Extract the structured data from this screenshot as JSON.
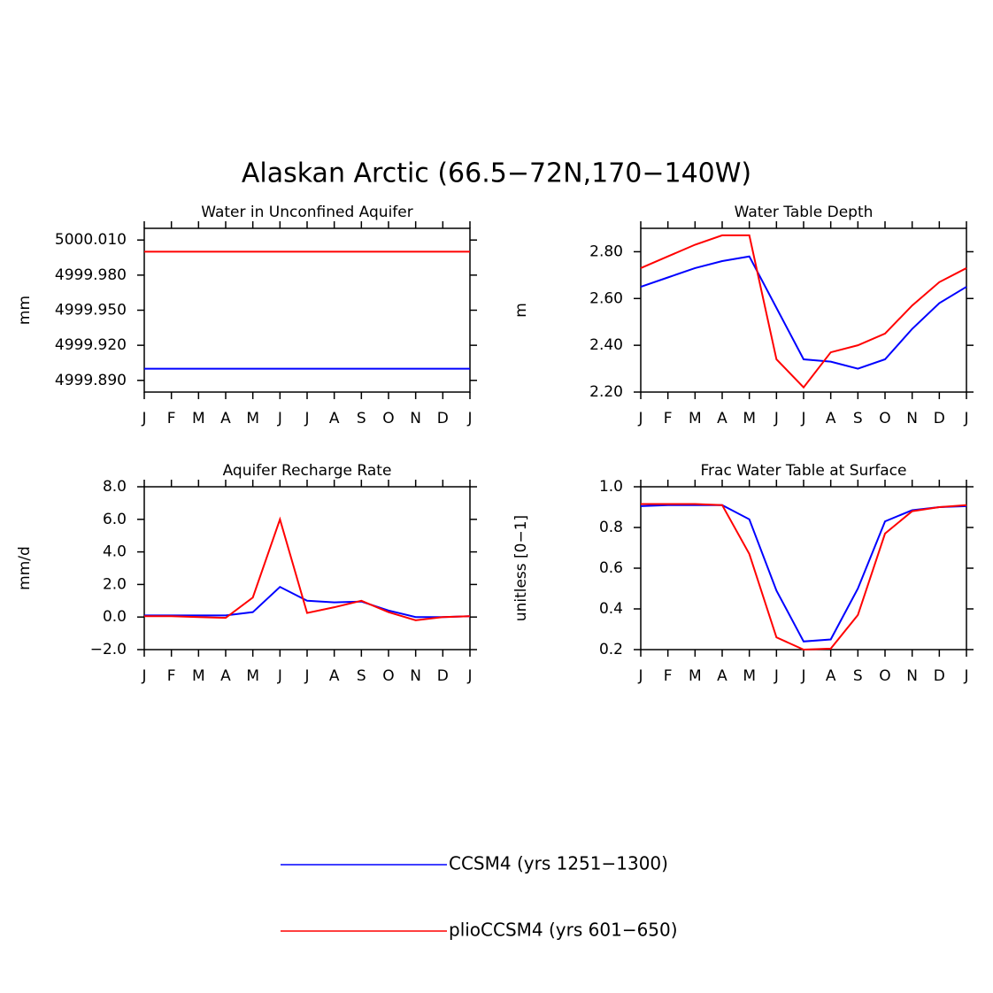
{
  "title": "Alaskan Arctic (66.5−72N,170−140W)",
  "legend": [
    {
      "name": "CCSM4 (yrs 1251−1300)",
      "color": "#0000ff"
    },
    {
      "name": "plioCCSM4 (yrs 601−650)",
      "color": "#ff0000"
    }
  ],
  "chart_data": [
    {
      "type": "line",
      "title": "Water in Unconfined Aquifer",
      "y_label": "mm",
      "categories": [
        "J",
        "F",
        "M",
        "A",
        "M",
        "J",
        "J",
        "A",
        "S",
        "O",
        "N",
        "D",
        "J"
      ],
      "ylim": [
        4999.88,
        5000.02
      ],
      "yticks": [
        {
          "value": 5000.01,
          "label": "5000.010"
        },
        {
          "value": 4999.98,
          "label": "4999.980"
        },
        {
          "value": 4999.95,
          "label": "4999.950"
        },
        {
          "value": 4999.92,
          "label": "4999.920"
        },
        {
          "value": 4999.89,
          "label": "4999.890"
        }
      ],
      "series": [
        {
          "color": "#0000ff",
          "values": [
            4999.9,
            4999.9,
            4999.9,
            4999.9,
            4999.9,
            4999.9,
            4999.9,
            4999.9,
            4999.9,
            4999.9,
            4999.9,
            4999.9,
            4999.9
          ]
        },
        {
          "color": "#ff0000",
          "values": [
            5000.0,
            5000.0,
            5000.0,
            5000.0,
            5000.0,
            5000.0,
            5000.0,
            5000.0,
            5000.0,
            5000.0,
            5000.0,
            5000.0,
            5000.0
          ]
        }
      ]
    },
    {
      "type": "line",
      "title": "Water Table Depth",
      "y_label": "m",
      "categories": [
        "J",
        "F",
        "M",
        "A",
        "M",
        "J",
        "J",
        "A",
        "S",
        "O",
        "N",
        "D",
        "J"
      ],
      "ylim": [
        2.2,
        2.9
      ],
      "yticks": [
        {
          "value": 2.8,
          "label": "2.80"
        },
        {
          "value": 2.6,
          "label": "2.60"
        },
        {
          "value": 2.4,
          "label": "2.40"
        },
        {
          "value": 2.2,
          "label": "2.20"
        }
      ],
      "series": [
        {
          "color": "#0000ff",
          "values": [
            2.65,
            2.69,
            2.73,
            2.76,
            2.78,
            2.56,
            2.34,
            2.33,
            2.3,
            2.34,
            2.47,
            2.58,
            2.65
          ]
        },
        {
          "color": "#ff0000",
          "values": [
            2.73,
            2.78,
            2.83,
            2.87,
            2.87,
            2.34,
            2.22,
            2.37,
            2.4,
            2.45,
            2.57,
            2.67,
            2.73
          ]
        }
      ]
    },
    {
      "type": "line",
      "title": "Aquifer Recharge Rate",
      "y_label": "mm/d",
      "categories": [
        "J",
        "F",
        "M",
        "A",
        "M",
        "J",
        "J",
        "A",
        "S",
        "O",
        "N",
        "D",
        "J"
      ],
      "ylim": [
        -2,
        8
      ],
      "yticks": [
        {
          "value": 8,
          "label": "8.0"
        },
        {
          "value": 6,
          "label": "6.0"
        },
        {
          "value": 4,
          "label": "4.0"
        },
        {
          "value": 2,
          "label": "2.0"
        },
        {
          "value": 0,
          "label": "0.0"
        },
        {
          "value": -2,
          "label": "−2.0"
        }
      ],
      "series": [
        {
          "color": "#0000ff",
          "values": [
            0.1,
            0.1,
            0.1,
            0.1,
            0.3,
            1.85,
            1.0,
            0.9,
            0.95,
            0.4,
            0,
            0,
            0.05
          ]
        },
        {
          "color": "#ff0000",
          "values": [
            0.05,
            0.05,
            0,
            -0.05,
            1.2,
            6.0,
            0.25,
            0.6,
            1.0,
            0.3,
            -0.2,
            0,
            0.05
          ]
        }
      ]
    },
    {
      "type": "line",
      "title": "Frac Water Table at Surface",
      "y_label": "unitless [0−1]",
      "categories": [
        "J",
        "F",
        "M",
        "A",
        "M",
        "J",
        "J",
        "A",
        "S",
        "O",
        "N",
        "D",
        "J"
      ],
      "ylim": [
        0.2,
        1.0
      ],
      "yticks": [
        {
          "value": 1.0,
          "label": "1.0"
        },
        {
          "value": 0.8,
          "label": "0.8"
        },
        {
          "value": 0.6,
          "label": "0.6"
        },
        {
          "value": 0.4,
          "label": "0.4"
        },
        {
          "value": 0.2,
          "label": "0.2"
        }
      ],
      "series": [
        {
          "color": "#0000ff",
          "values": [
            0.905,
            0.91,
            0.91,
            0.91,
            0.84,
            0.49,
            0.24,
            0.25,
            0.5,
            0.83,
            0.885,
            0.9,
            0.905
          ]
        },
        {
          "color": "#ff0000",
          "values": [
            0.915,
            0.915,
            0.915,
            0.91,
            0.67,
            0.26,
            0.2,
            0.205,
            0.37,
            0.77,
            0.88,
            0.9,
            0.91
          ]
        }
      ]
    }
  ]
}
